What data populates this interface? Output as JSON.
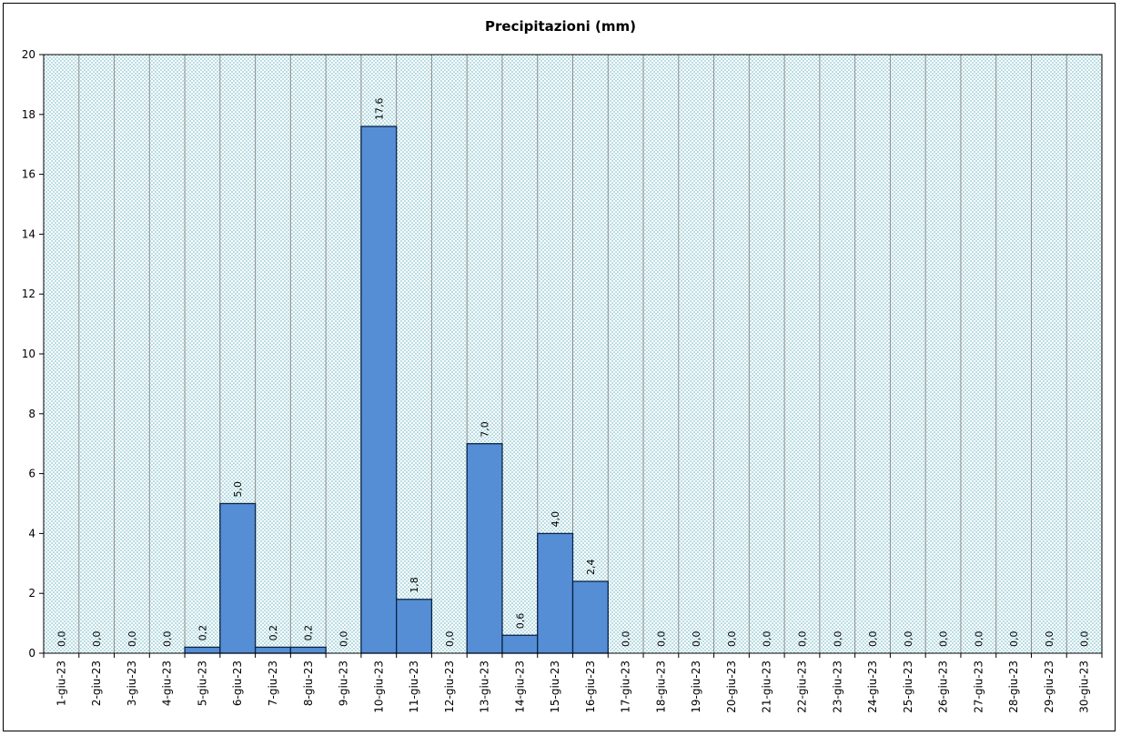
{
  "chart_data": {
    "type": "bar",
    "title": "Precipitazioni  (mm)",
    "xlabel": "",
    "ylabel": "",
    "ylim": [
      0,
      20
    ],
    "yticks": [
      0,
      2,
      4,
      6,
      8,
      10,
      12,
      14,
      16,
      18,
      20
    ],
    "grid": true,
    "categories": [
      "1-giu-23",
      "2-giu-23",
      "3-giu-23",
      "4-giu-23",
      "5-giu-23",
      "6-giu-23",
      "7-giu-23",
      "8-giu-23",
      "9-giu-23",
      "10-giu-23",
      "11-giu-23",
      "12-giu-23",
      "13-giu-23",
      "14-giu-23",
      "15-giu-23",
      "16-giu-23",
      "17-giu-23",
      "18-giu-23",
      "19-giu-23",
      "20-giu-23",
      "21-giu-23",
      "22-giu-23",
      "23-giu-23",
      "24-giu-23",
      "25-giu-23",
      "26-giu-23",
      "27-giu-23",
      "28-giu-23",
      "29-giu-23",
      "30-giu-23"
    ],
    "values": [
      0,
      0,
      0,
      0,
      0.2,
      5.0,
      0.2,
      0.2,
      0,
      17.6,
      1.8,
      0,
      7.0,
      0.6,
      4.0,
      2.4,
      0,
      0,
      0,
      0,
      0,
      0,
      0,
      0,
      0,
      0,
      0,
      0,
      0,
      0
    ],
    "data_labels": [
      "0,0",
      "0,0",
      "0,0",
      "0,0",
      "0,2",
      "5,0",
      "0,2",
      "0,2",
      "0,0",
      "17,6",
      "1,8",
      "0,0",
      "7,0",
      "0,6",
      "4,0",
      "2,4",
      "0,0",
      "0,0",
      "0,0",
      "0,0",
      "0,0",
      "0,0",
      "0,0",
      "0,0",
      "0,0",
      "0,0",
      "0,0",
      "0,0",
      "0,0",
      "0,0"
    ],
    "colors": {
      "bar": "#558ed5",
      "bar_border": "#0b2346",
      "plot_bg": "#d9eef1",
      "gridline": "#8c8c8c"
    }
  }
}
